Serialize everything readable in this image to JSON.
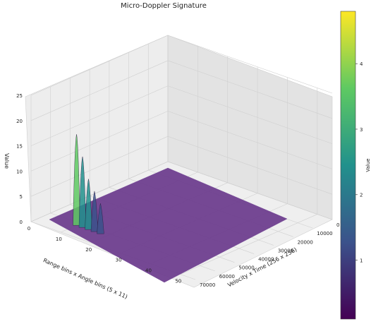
{
  "chart_data": {
    "type": "surface3d",
    "title": "Micro-Doppler Signature",
    "xlabel": "Velocity x Time (256 x 256)",
    "ylabel": "Range bins x Angle bins (5 x 11)",
    "zlabel": "Value",
    "x_ticks": [
      0,
      10000,
      20000,
      30000,
      40000,
      50000,
      60000,
      70000
    ],
    "y_ticks": [
      0,
      10,
      20,
      30,
      40,
      50
    ],
    "z_ticks": [
      0,
      5,
      10,
      15,
      20,
      25
    ],
    "xlim": [
      0,
      70000
    ],
    "ylim": [
      0,
      55
    ],
    "zlim": [
      0,
      25
    ],
    "baseline_value": 0.3,
    "peaks": [
      {
        "x": 62000,
        "y": 10,
        "z": 18
      },
      {
        "x": 62000,
        "y": 12,
        "z": 14
      },
      {
        "x": 62000,
        "y": 14,
        "z": 10
      },
      {
        "x": 62000,
        "y": 16,
        "z": 8
      },
      {
        "x": 62000,
        "y": 18,
        "z": 6
      }
    ],
    "colorbar": {
      "label": "Value",
      "ticks": [
        1,
        2,
        3,
        4
      ],
      "range": [
        0.1,
        4.8
      ],
      "colormap": "viridis",
      "colors": [
        "#440154",
        "#3b528b",
        "#21918c",
        "#5ec962",
        "#fde725"
      ]
    },
    "grid": true
  }
}
